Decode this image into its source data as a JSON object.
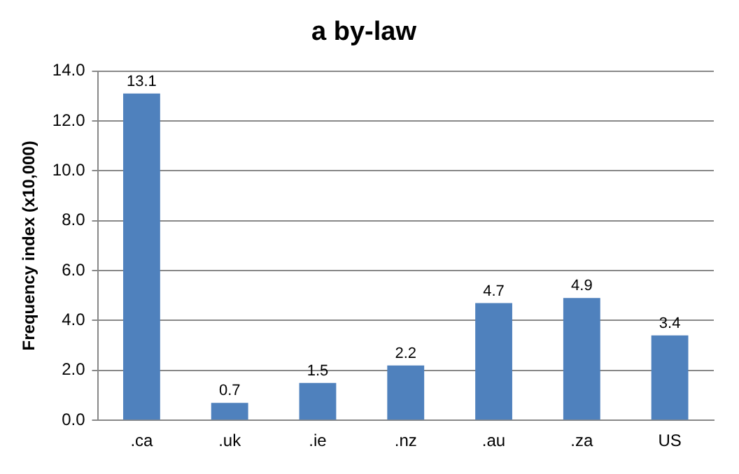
{
  "chart_data": {
    "type": "bar",
    "title": "a by-law",
    "ylabel": "Frequency index (x10,000)",
    "categories": [
      ".ca",
      ".uk",
      ".ie",
      ".nz",
      ".au",
      ".za",
      "US"
    ],
    "values": [
      13.1,
      0.7,
      1.5,
      2.2,
      4.7,
      4.9,
      3.4
    ],
    "color": "#4f81bd",
    "ylim": [
      0,
      14
    ],
    "yticks": [
      {
        "value": 0,
        "label": "0.0"
      },
      {
        "value": 2,
        "label": "2.0"
      },
      {
        "value": 4,
        "label": "4.0"
      },
      {
        "value": 6,
        "label": "6.0"
      },
      {
        "value": 8,
        "label": "8.0"
      },
      {
        "value": 10,
        "label": "10.0"
      },
      {
        "value": 12,
        "label": "12.0"
      },
      {
        "value": 14,
        "label": "14.0"
      }
    ],
    "grid": "y",
    "legend": false,
    "data_labels": true
  }
}
